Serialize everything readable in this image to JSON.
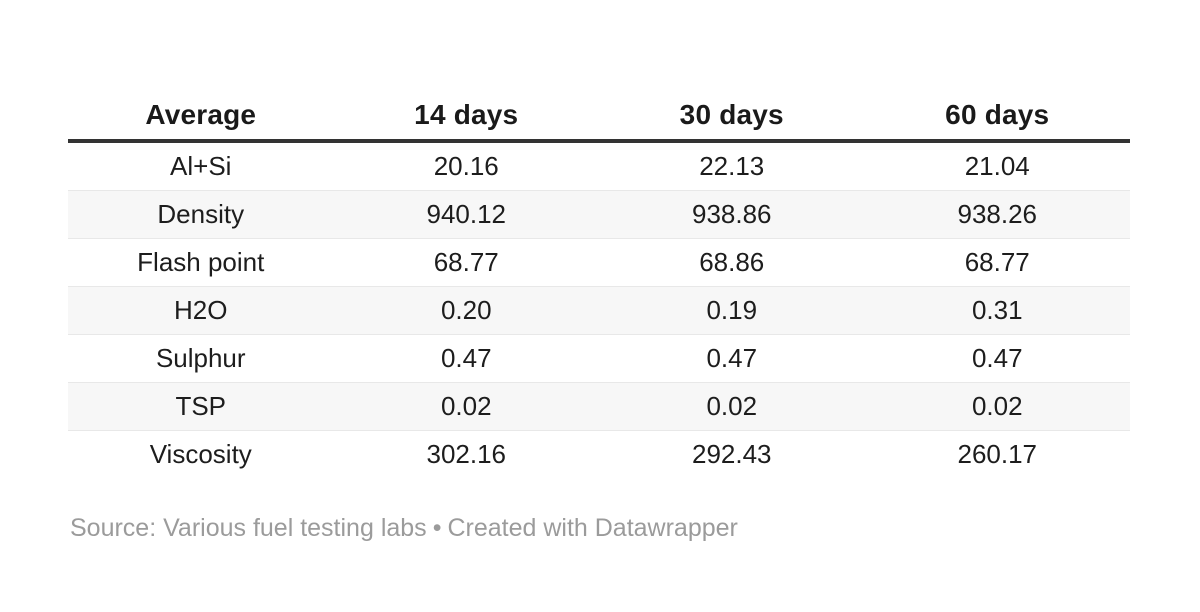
{
  "chart_data": {
    "type": "table",
    "title": "",
    "columns": [
      "Average",
      "14 days",
      "30 days",
      "60 days"
    ],
    "rows": [
      [
        "Al+Si",
        "20.16",
        "22.13",
        "21.04"
      ],
      [
        "Density",
        "940.12",
        "938.86",
        "938.26"
      ],
      [
        "Flash point",
        "68.77",
        "68.86",
        "68.77"
      ],
      [
        "H2O",
        "0.20",
        "0.19",
        "0.31"
      ],
      [
        "Sulphur",
        "0.47",
        "0.47",
        "0.47"
      ],
      [
        "TSP",
        "0.02",
        "0.02",
        "0.02"
      ],
      [
        "Viscosity",
        "302.16",
        "292.43",
        "260.17"
      ]
    ],
    "layout": {
      "zebra_stripes": true,
      "header_alignment": "center",
      "cell_alignment": "center"
    }
  },
  "footer": {
    "source": "Source: Various fuel testing labs",
    "separator": "•",
    "credit": "Created with Datawrapper"
  },
  "colors": {
    "header_rule": "#333333",
    "row_stripe": "#f7f7f7",
    "row_border": "#e8e8e8",
    "text": "#1d1d1d",
    "muted_text": "#9b9b9b",
    "background": "#ffffff"
  }
}
